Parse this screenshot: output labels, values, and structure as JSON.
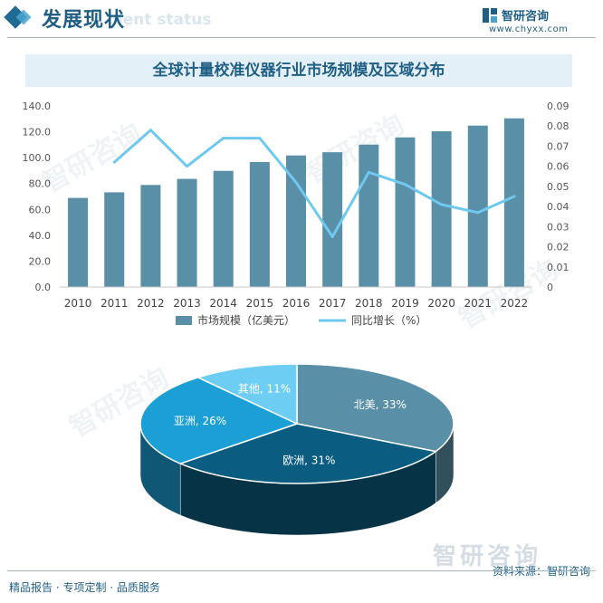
{
  "header": {
    "title": "发展现状",
    "subtitle": "ment status",
    "brand_name": "智研咨询",
    "brand_url": "www.chyxx.com"
  },
  "watermark": {
    "text": "智研咨询"
  },
  "footer": {
    "left_text": "精品报告 · 专项定制 · 品质服务",
    "source": "资料来源：智研咨询",
    "brand": "智研咨询"
  },
  "colors": {
    "bar": "#5a8fa8",
    "line": "#6fc8ee",
    "pie_north_america": "#5a8fa8",
    "pie_europe": "#0a5c80",
    "pie_asia": "#1b9fd4",
    "pie_other": "#6ecdf2"
  },
  "chart_data": [
    {
      "type": "bar",
      "title": "全球计量校准仪器行业市场规模及区域分布",
      "categories": [
        "2010",
        "2011",
        "2012",
        "2013",
        "2014",
        "2015",
        "2016",
        "2017",
        "2018",
        "2019",
        "2020",
        "2021",
        "2022"
      ],
      "series": [
        {
          "name": "市场规模（亿美元）",
          "type": "bar",
          "axis": "left",
          "values": [
            68.9,
            73.2,
            78.9,
            83.6,
            89.8,
            96.6,
            101.7,
            104.2,
            110.1,
            115.7,
            120.4,
            124.8,
            130.4
          ]
        },
        {
          "name": "同比增长（%）",
          "type": "line",
          "axis": "right",
          "values": [
            null,
            0.062,
            0.078,
            0.06,
            0.074,
            0.074,
            0.052,
            0.025,
            0.057,
            0.051,
            0.041,
            0.037,
            0.045
          ]
        }
      ],
      "ylim_left": [
        0,
        140
      ],
      "yticks_left": [
        "0.0",
        "20.0",
        "40.0",
        "60.0",
        "80.0",
        "100.0",
        "120.0",
        "140.0"
      ],
      "ylim_right": [
        0,
        0.09
      ],
      "yticks_right": [
        "0",
        "0.01",
        "0.02",
        "0.03",
        "0.04",
        "0.05",
        "0.06",
        "0.07",
        "0.08",
        "0.09"
      ],
      "legend": "bottom"
    },
    {
      "type": "pie",
      "slices": [
        {
          "label": "北美",
          "value": 33,
          "text": "北美, 33%"
        },
        {
          "label": "欧洲",
          "value": 31,
          "text": "欧洲, 31%"
        },
        {
          "label": "亚洲",
          "value": 26,
          "text": "亚洲, 26%"
        },
        {
          "label": "其他",
          "value": 11,
          "text": "其他, 11%"
        }
      ]
    }
  ]
}
